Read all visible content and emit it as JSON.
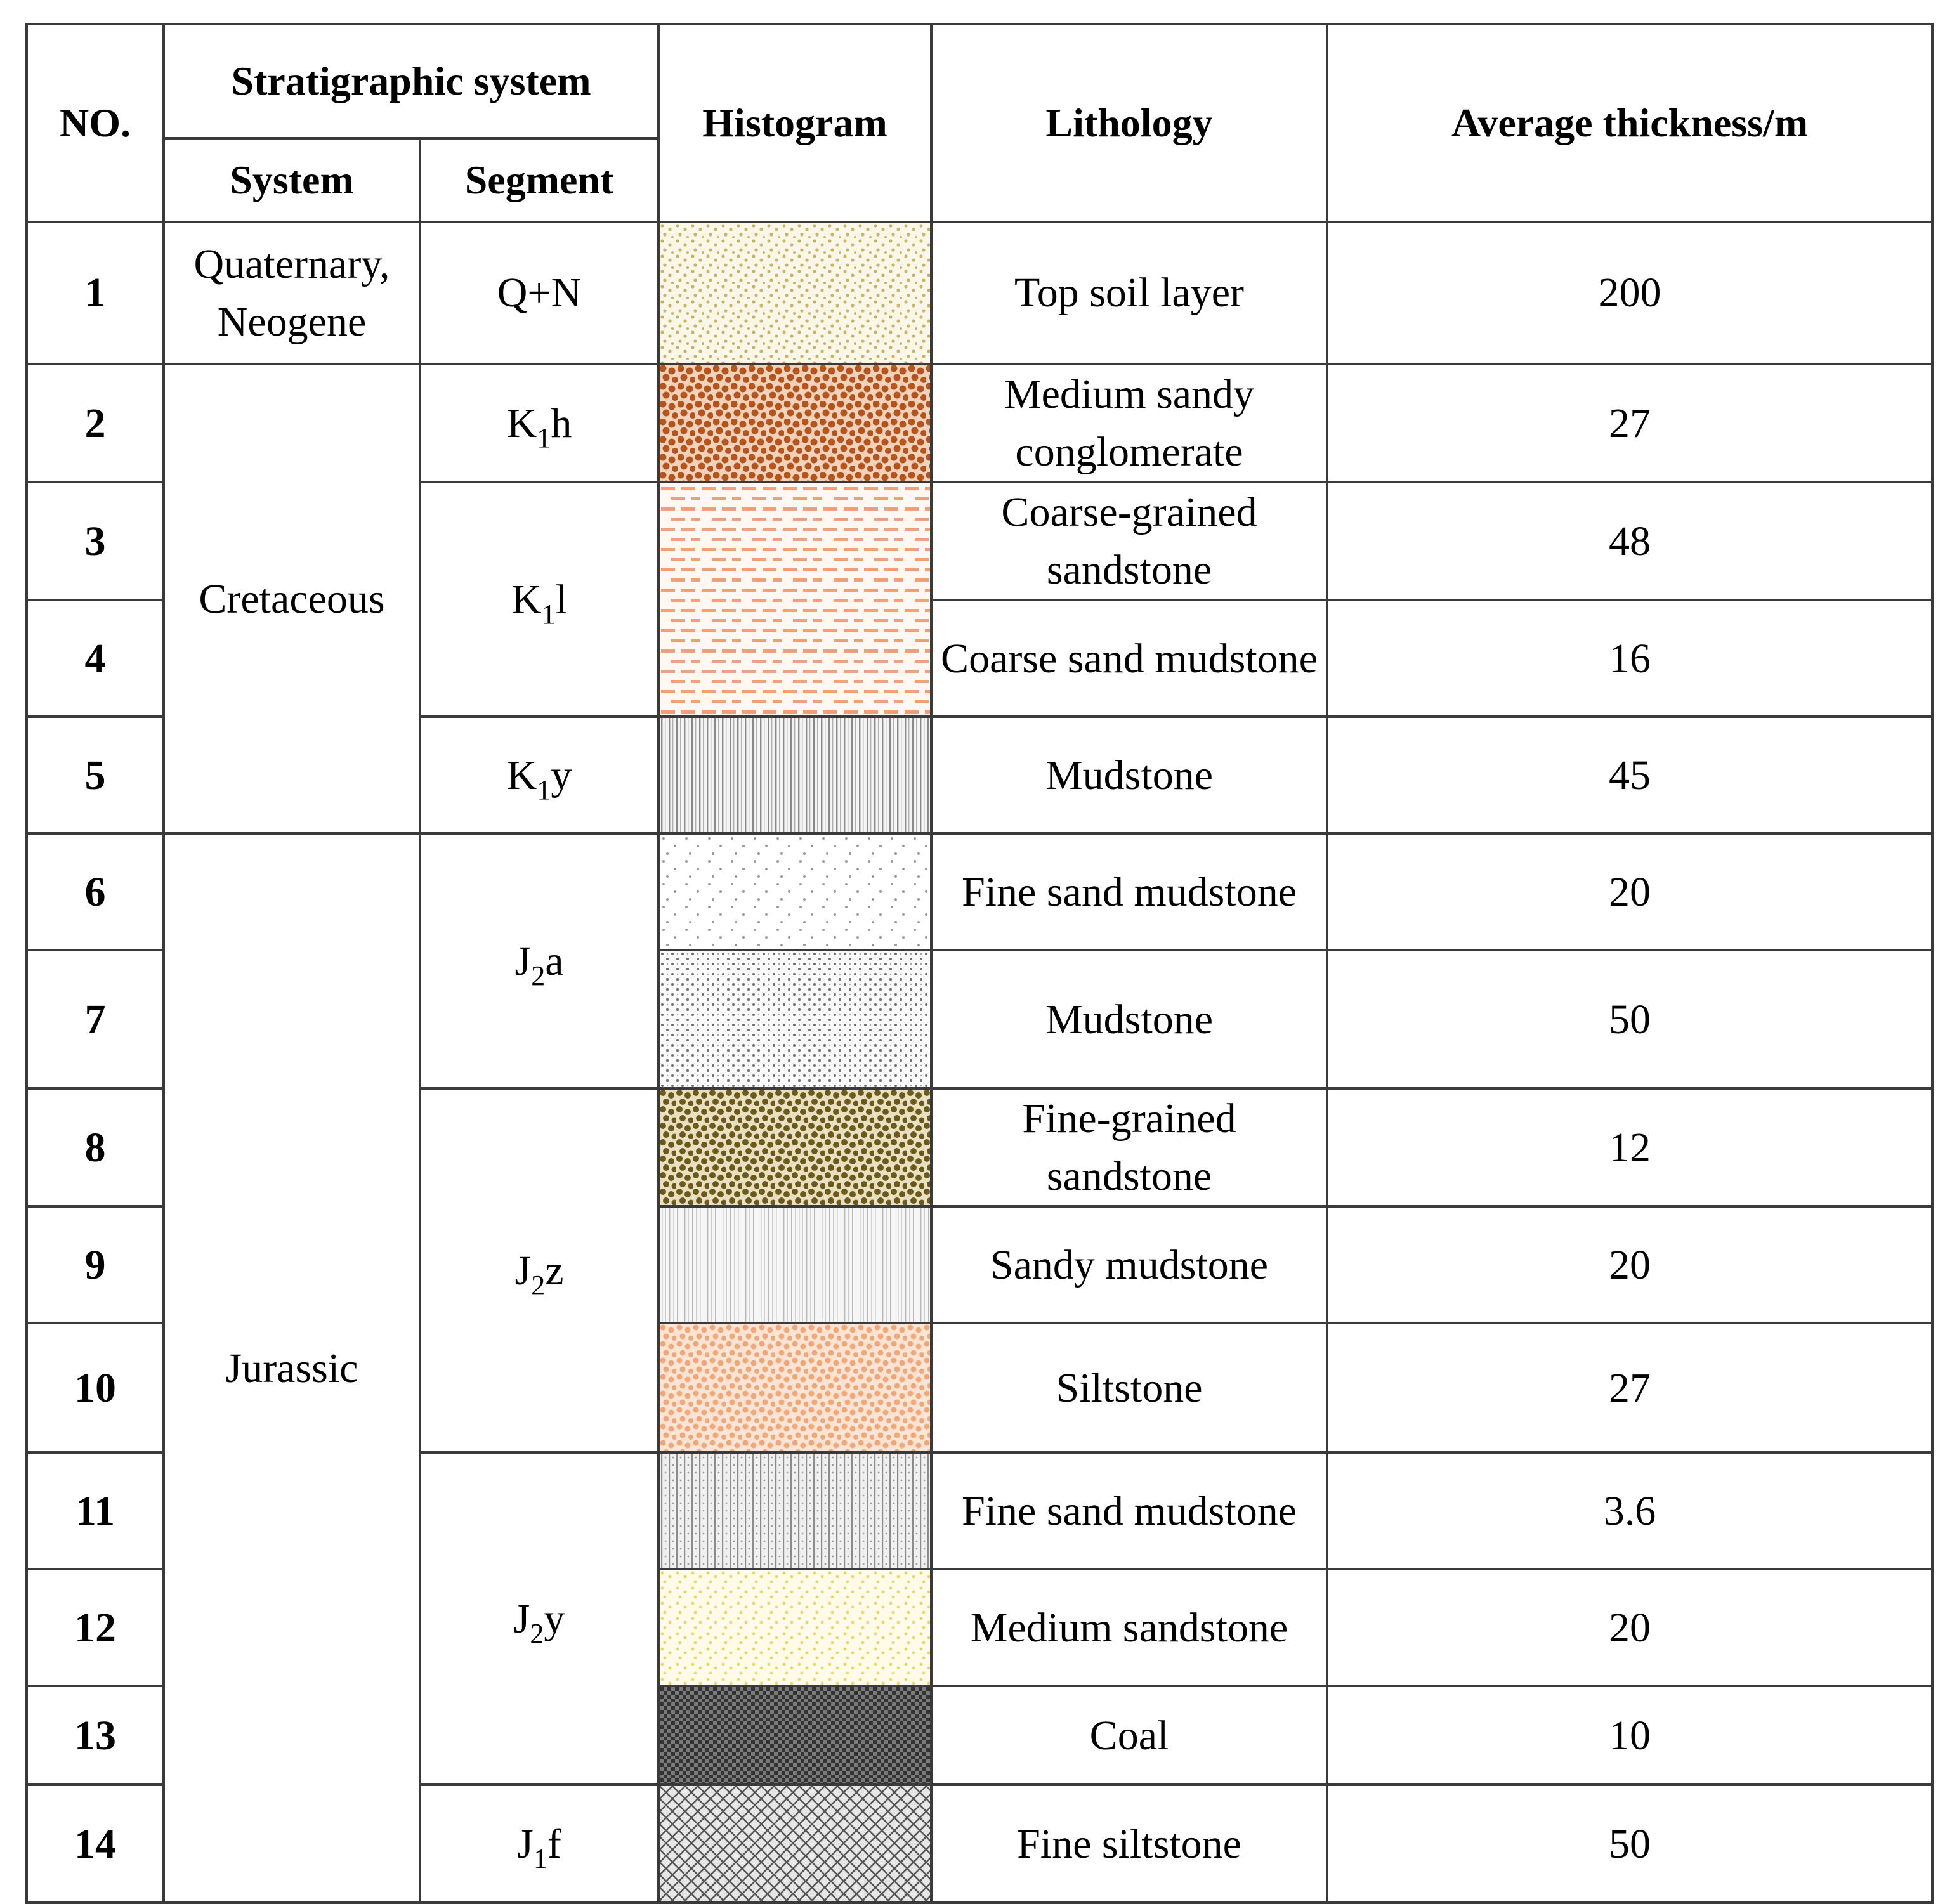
{
  "headers": {
    "no": "NO.",
    "stratigraphic_system": "Stratigraphic system",
    "system": "System",
    "segment": "Segment",
    "histogram": "Histogram",
    "lithology": "Lithology",
    "thickness": "Average thickness/m"
  },
  "systems": {
    "quaternary": "Quaternary, Neogene",
    "cretaceous": "Cretaceous",
    "jurassic": "Jurassic"
  },
  "segments": {
    "qn": "Q+N",
    "k1h": {
      "main": "K",
      "sub": "1",
      "suffix": "h"
    },
    "k1l": {
      "main": "K",
      "sub": "1",
      "suffix": "l"
    },
    "k1y": {
      "main": "K",
      "sub": "1",
      "suffix": "y"
    },
    "j2a": {
      "main": "J",
      "sub": "2",
      "suffix": "a"
    },
    "j2z": {
      "main": "J",
      "sub": "2",
      "suffix": "z"
    },
    "j2y": {
      "main": "J",
      "sub": "2",
      "suffix": "y"
    },
    "j1f": {
      "main": "J",
      "sub": "1",
      "suffix": "f"
    }
  },
  "rows": [
    {
      "no": "1",
      "lithology": "Top soil layer",
      "thickness": "200"
    },
    {
      "no": "2",
      "lithology": "Medium sandy conglomerate",
      "thickness": "27"
    },
    {
      "no": "3",
      "lithology": "Coarse-grained sandstone",
      "thickness": "48"
    },
    {
      "no": "4",
      "lithology": "Coarse sand mudstone",
      "thickness": "16"
    },
    {
      "no": "5",
      "lithology": "Mudstone",
      "thickness": "45"
    },
    {
      "no": "6",
      "lithology": "Fine sand mudstone",
      "thickness": "20"
    },
    {
      "no": "7",
      "lithology": "Mudstone",
      "thickness": "50"
    },
    {
      "no": "8",
      "lithology": "Fine-grained sandstone",
      "thickness": "12"
    },
    {
      "no": "9",
      "lithology": "Sandy mudstone",
      "thickness": "20"
    },
    {
      "no": "10",
      "lithology": "Siltstone",
      "thickness": "27"
    },
    {
      "no": "11",
      "lithology": "Fine sand mudstone",
      "thickness": "3.6"
    },
    {
      "no": "12",
      "lithology": "Medium sandstone",
      "thickness": "20"
    },
    {
      "no": "13",
      "lithology": "Coal",
      "thickness": "10"
    },
    {
      "no": "14",
      "lithology": "Fine siltstone",
      "thickness": "50"
    }
  ],
  "colors": {
    "grid": "#3a3a3a",
    "topsoil": "#c8b266",
    "conglomerate": "#b5541c",
    "coarse_sandstone": "#f2a07a",
    "mudstone_k1y": "#8a8a8a",
    "fine_sand_mudstone": "#9a9a9a",
    "mudstone_j2a": "#6e6e6e",
    "fine_grained_sandstone": "#6b5a1a",
    "sandy_mudstone": "#b8b8b8",
    "siltstone": "#f0a878",
    "fine_sand_mudstone_j2y": "#8c8c8c",
    "medium_sandstone": "#ecd46a",
    "coal": "#333333",
    "fine_siltstone": "#555555"
  }
}
